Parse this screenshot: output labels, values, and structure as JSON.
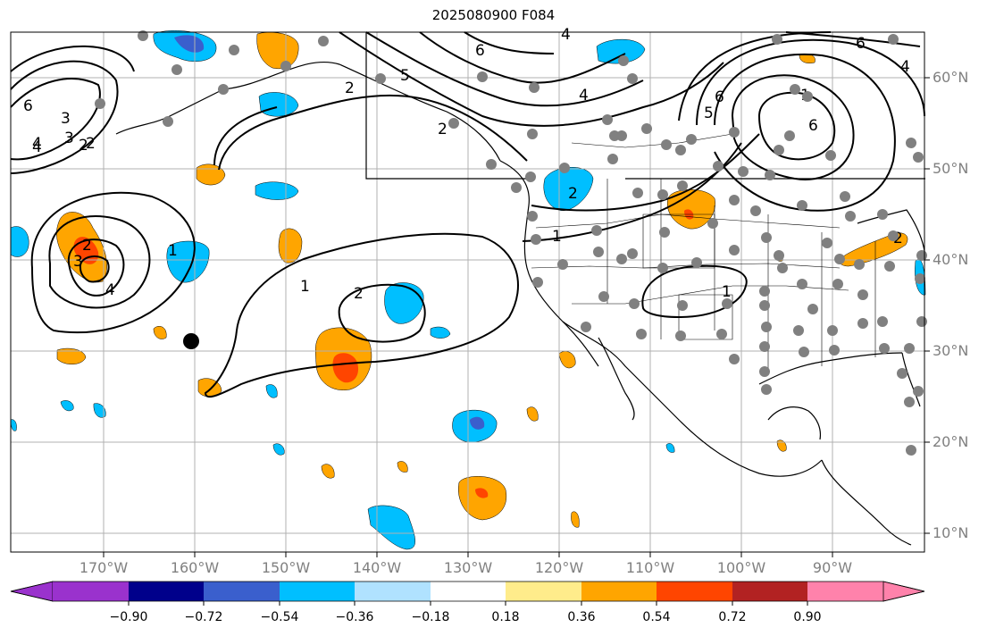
{
  "title": "2025080900 F084",
  "lon_labels": [
    "170°W",
    "160°W",
    "150°W",
    "140°W",
    "130°W",
    "120°W",
    "110°W",
    "100°W",
    "90°W"
  ],
  "lat_labels": [
    "60°N",
    "50°N",
    "40°N",
    "30°N",
    "20°N",
    "10°N"
  ],
  "colorbar": {
    "ticks": [
      "−0.90",
      "−0.72",
      "−0.54",
      "−0.36",
      "−0.18",
      "0.18",
      "0.36",
      "0.54",
      "0.72",
      "0.90"
    ],
    "colors": [
      "#9a32cd",
      "#00008b",
      "#3a5fcd",
      "#00bfff",
      "#b0e2ff",
      "#ffffff",
      "#ffec8b",
      "#ffa500",
      "#ff4500",
      "#b22222",
      "#ff82ab"
    ]
  },
  "contour_labels": [
    "6",
    "4",
    "3",
    "2",
    "2",
    "4",
    "5",
    "6",
    "4",
    "2",
    "2",
    "1",
    "6",
    "4",
    "2",
    "1",
    "1",
    "2",
    "1",
    "2",
    "3",
    "4",
    "5",
    "6",
    "3",
    "6",
    "4",
    "2",
    "1"
  ]
}
